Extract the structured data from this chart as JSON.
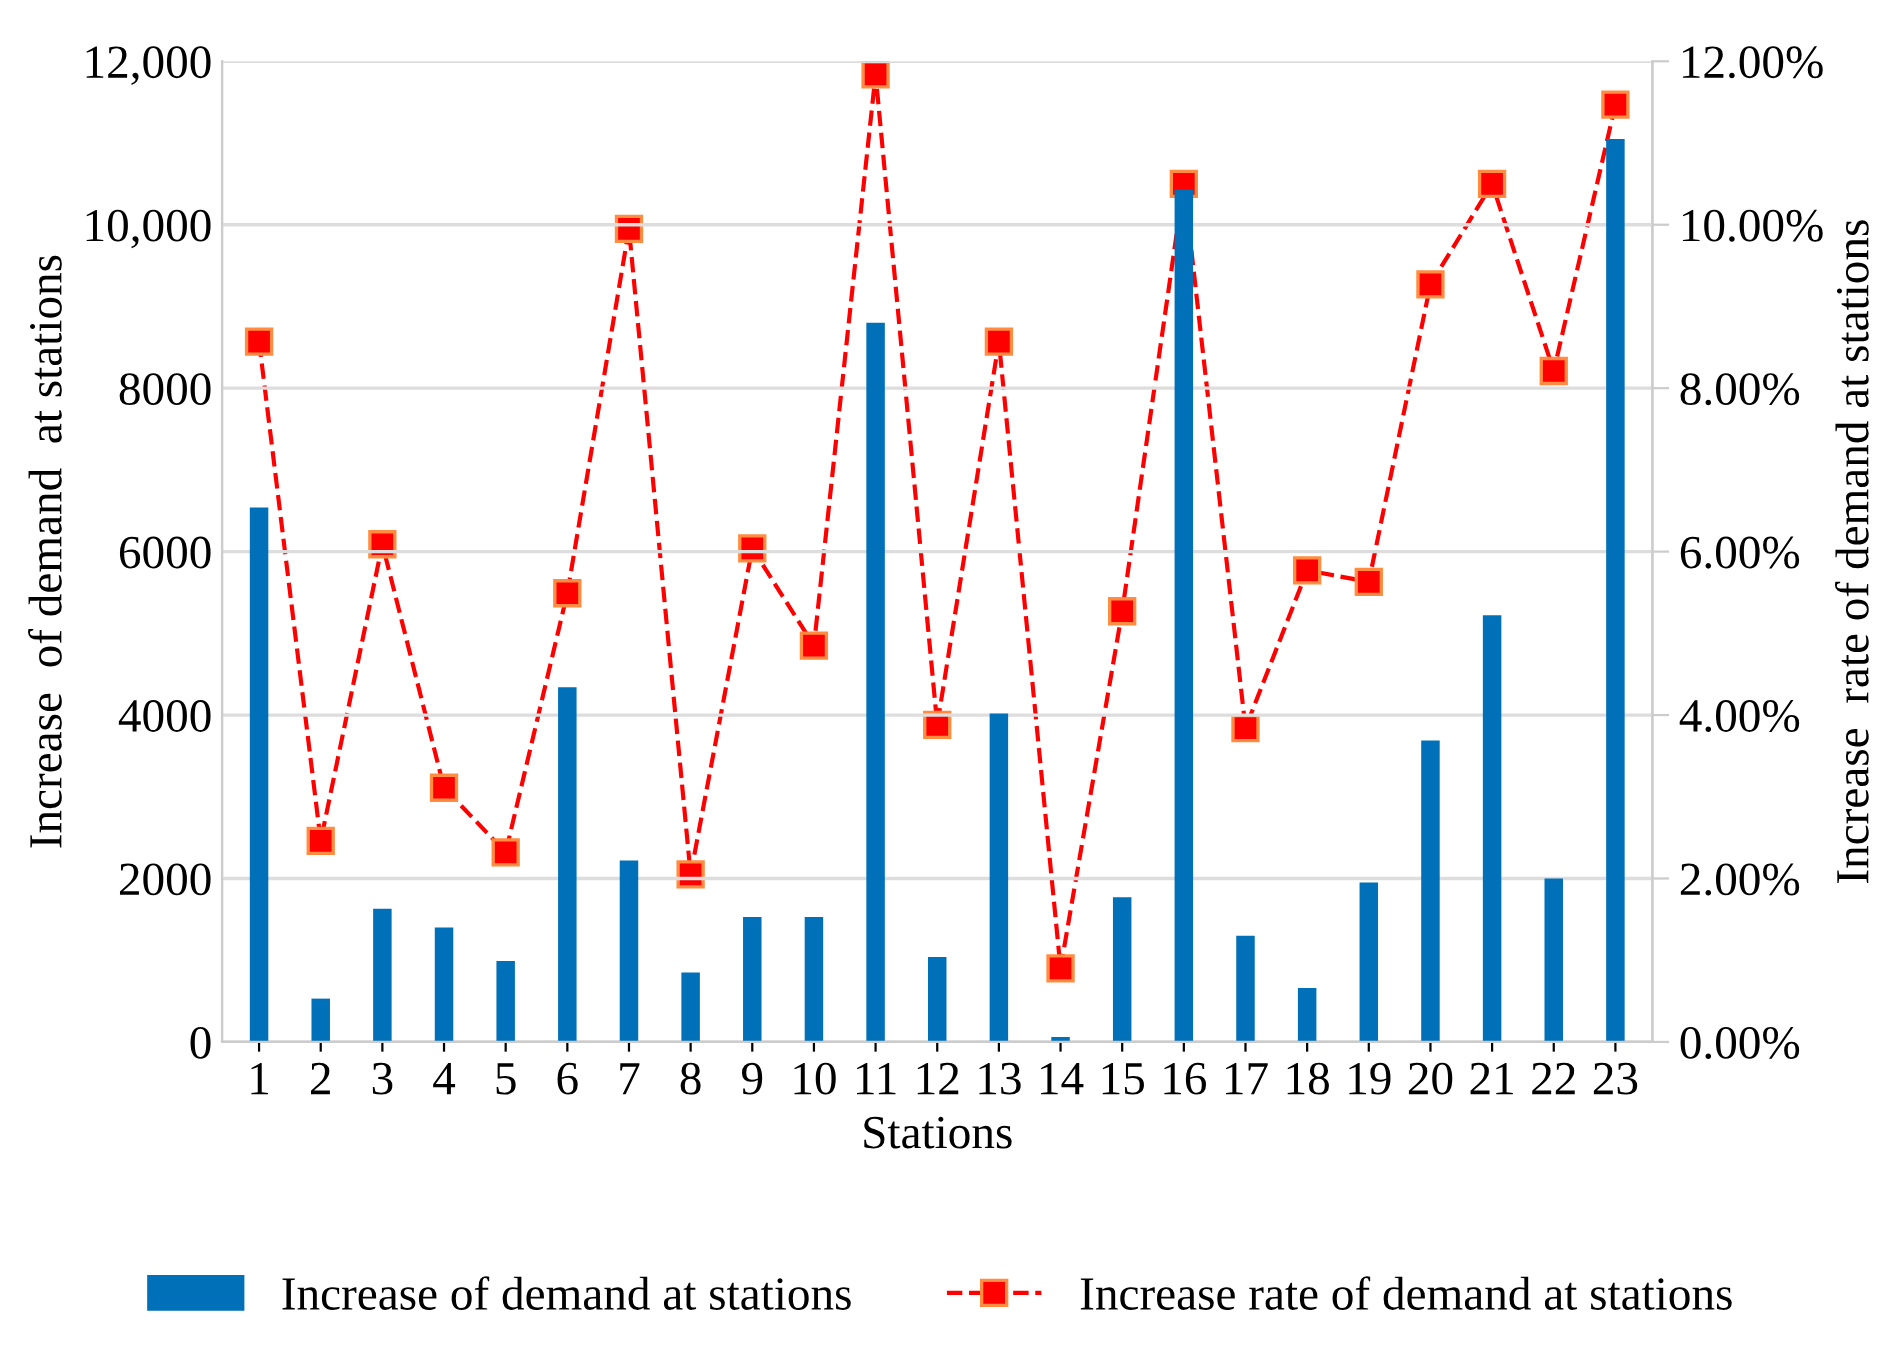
{
  "chart_data": {
    "type": "bar",
    "xlabel": "Stations",
    "ylabel": "Increase  of demand  at stations",
    "y2label": "Increase  rate of demand at stations",
    "categories": [
      "1",
      "2",
      "3",
      "4",
      "5",
      "6",
      "7",
      "8",
      "9",
      "10",
      "11",
      "12",
      "13",
      "14",
      "15",
      "16",
      "17",
      "18",
      "19",
      "20",
      "21",
      "22",
      "23"
    ],
    "series": [
      {
        "name": "Increase of demand at stations",
        "color": "#0070b8",
        "values": [
          6540,
          530,
          1630,
          1400,
          990,
          4340,
          2220,
          850,
          1530,
          1530,
          8800,
          1040,
          4020,
          60,
          1770,
          10430,
          1300,
          660,
          1950,
          3690,
          5220,
          2000,
          11050
        ]
      },
      {
        "name": "Increase rate of demand at stations",
        "type": "line",
        "axis": "y2",
        "color": "#ff0000",
        "marker": "square",
        "line_style": "dashed",
        "values": [
          8.57,
          2.46,
          6.09,
          3.11,
          2.32,
          5.49,
          9.95,
          2.05,
          6.04,
          4.85,
          11.84,
          3.88,
          8.57,
          0.9,
          5.27,
          10.5,
          3.84,
          5.77,
          5.63,
          9.27,
          10.5,
          8.21,
          11.47
        ]
      }
    ],
    "ylim": [
      0,
      12000
    ],
    "yticks": [
      0,
      2000,
      4000,
      6000,
      8000,
      {
        "value": 10000,
        "label": "10,000"
      },
      {
        "value": 12000,
        "label": "12,000"
      }
    ],
    "y2lim": [
      0,
      12
    ],
    "y2ticks": [
      {
        "value": 0,
        "label": "0.00%"
      },
      {
        "value": 2,
        "label": "2.00%"
      },
      {
        "value": 4,
        "label": "4.00%"
      },
      {
        "value": 6,
        "label": "6.00%"
      },
      {
        "value": 8,
        "label": "8.00%"
      },
      {
        "value": 10,
        "label": "10.00%"
      },
      {
        "value": 12,
        "label": "12.00%"
      }
    ],
    "grid": "y",
    "legend": "bottom"
  }
}
